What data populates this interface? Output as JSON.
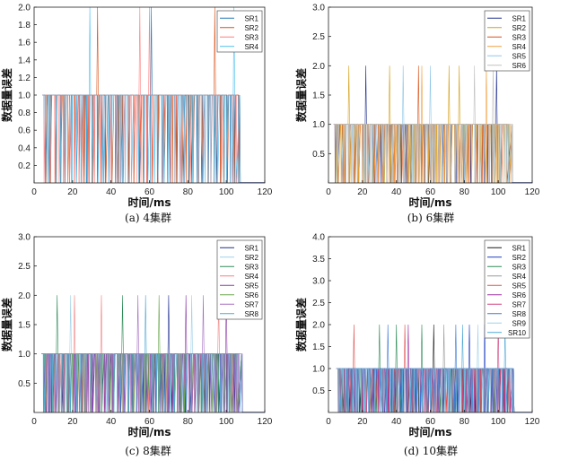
{
  "chart_data": [
    {
      "type": "line",
      "caption": "(a) 4集群",
      "xlabel": "时间/ms",
      "ylabel": "数据量误差",
      "xlim": [
        0,
        120
      ],
      "ylim": [
        0,
        2.0
      ],
      "xticks": [
        "0",
        "20",
        "40",
        "60",
        "80",
        "100",
        "120"
      ],
      "yticks": [
        "0.2",
        "0.4",
        "0.6",
        "0.8",
        "1.0",
        "1.2",
        "1.4",
        "1.6",
        "1.8",
        "2.0"
      ],
      "ytick_values": [
        0.2,
        0.4,
        0.6,
        0.8,
        1.0,
        1.2,
        1.4,
        1.6,
        1.8,
        2.0
      ],
      "data_end": 107,
      "series": [
        {
          "name": "SR1",
          "color": "#1f77b4",
          "peaks": [
            61
          ]
        },
        {
          "name": "SR2",
          "color": "#d95319",
          "peaks": [
            33,
            94
          ]
        },
        {
          "name": "SR3",
          "color": "#ff7f7f",
          "peaks": [
            55,
            60
          ]
        },
        {
          "name": "SR4",
          "color": "#4dbeee",
          "peaks": [
            29,
            104
          ]
        }
      ]
    },
    {
      "type": "line",
      "caption": "(b) 6集群",
      "xlabel": "时间/ms",
      "ylabel": "数据量误差",
      "xlim": [
        0,
        120
      ],
      "ylim": [
        0,
        3.0
      ],
      "xticks": [
        "0",
        "20",
        "40",
        "60",
        "80",
        "100",
        "120"
      ],
      "yticks": [
        "0.5",
        "1.0",
        "1.5",
        "2.0",
        "2.5",
        "3.0"
      ],
      "ytick_values": [
        0.5,
        1.0,
        1.5,
        2.0,
        2.5,
        3.0
      ],
      "data_end": 108,
      "series": [
        {
          "name": "SR1",
          "color": "#1f2f8f",
          "peaks": [
            22,
            99
          ]
        },
        {
          "name": "SR2",
          "color": "#d4a017",
          "peaks": [
            12,
            36,
            71,
            77
          ]
        },
        {
          "name": "SR3",
          "color": "#d95319",
          "peaks": [
            53
          ]
        },
        {
          "name": "SR4",
          "color": "#f0a040",
          "peaks": [
            55,
            93
          ]
        },
        {
          "name": "SR5",
          "color": "#8fc7e8",
          "peaks": [
            44,
            60
          ]
        },
        {
          "name": "SR6",
          "color": "#c0c0c0",
          "peaks": [
            86,
            97
          ]
        }
      ]
    },
    {
      "type": "line",
      "caption": "(c) 8集群",
      "xlabel": "时间/ms",
      "ylabel": "数据量误差",
      "xlim": [
        0,
        120
      ],
      "ylim": [
        0,
        3.0
      ],
      "xticks": [
        "0",
        "20",
        "40",
        "60",
        "80",
        "100",
        "120"
      ],
      "yticks": [
        "0.5",
        "1.0",
        "1.5",
        "2.0",
        "2.5",
        "3.0"
      ],
      "ytick_values": [
        0.5,
        1.0,
        1.5,
        2.0,
        2.5,
        3.0
      ],
      "data_end": 108,
      "series": [
        {
          "name": "SR1",
          "color": "#1f2f8f",
          "peaks": [
            70
          ]
        },
        {
          "name": "SR2",
          "color": "#9fd0e8",
          "peaks": [
            19,
            82
          ]
        },
        {
          "name": "SR3",
          "color": "#2e8b57",
          "peaks": [
            12,
            46
          ]
        },
        {
          "name": "SR4",
          "color": "#f08080",
          "peaks": [
            21,
            35,
            96
          ]
        },
        {
          "name": "SR5",
          "color": "#8b3aa6",
          "peaks": [
            79,
            100
          ]
        },
        {
          "name": "SR6",
          "color": "#6aa84f",
          "peaks": [
            65
          ]
        },
        {
          "name": "SR7",
          "color": "#a56cc1",
          "peaks": [
            54,
            88
          ]
        },
        {
          "name": "SR8",
          "color": "#4fa8d6",
          "peaks": [
            58
          ]
        }
      ]
    },
    {
      "type": "line",
      "caption": "(d) 10集群",
      "xlabel": "时间/ms",
      "ylabel": "数据量误差",
      "xlim": [
        0,
        120
      ],
      "ylim": [
        0,
        4.0
      ],
      "xticks": [
        "0",
        "20",
        "40",
        "60",
        "80",
        "100",
        "120"
      ],
      "yticks": [
        "0.5",
        "1.0",
        "1.5",
        "2.0",
        "2.5",
        "3.0",
        "3.5",
        "4.0"
      ],
      "ytick_values": [
        0.5,
        1.0,
        1.5,
        2.0,
        2.5,
        3.0,
        3.5,
        4.0
      ],
      "data_end": 109,
      "series": [
        {
          "name": "SR1",
          "color": "#1a1a1a",
          "peaks": [
            62
          ]
        },
        {
          "name": "SR2",
          "color": "#1f3fbf",
          "peaks": [
            83,
            92
          ]
        },
        {
          "name": "SR3",
          "color": "#2e8b57",
          "peaks": [
            30,
            40,
            55
          ]
        },
        {
          "name": "SR4",
          "color": "#999999",
          "peaks": [
            68
          ]
        },
        {
          "name": "SR5",
          "color": "#e05050",
          "peaks": [
            15,
            45
          ]
        },
        {
          "name": "SR6",
          "color": "#9b30a0",
          "peaks": [
            47
          ]
        },
        {
          "name": "SR7",
          "color": "#d04080",
          "peaks": [
            100
          ]
        },
        {
          "name": "SR8",
          "color": "#3a7bd5",
          "peaks": [
            35,
            75
          ]
        },
        {
          "name": "SR9",
          "color": "#9fd0e8",
          "peaks": [
            88
          ]
        },
        {
          "name": "SR10",
          "color": "#4fa8d6",
          "peaks": [
            79,
            104
          ]
        }
      ]
    }
  ]
}
